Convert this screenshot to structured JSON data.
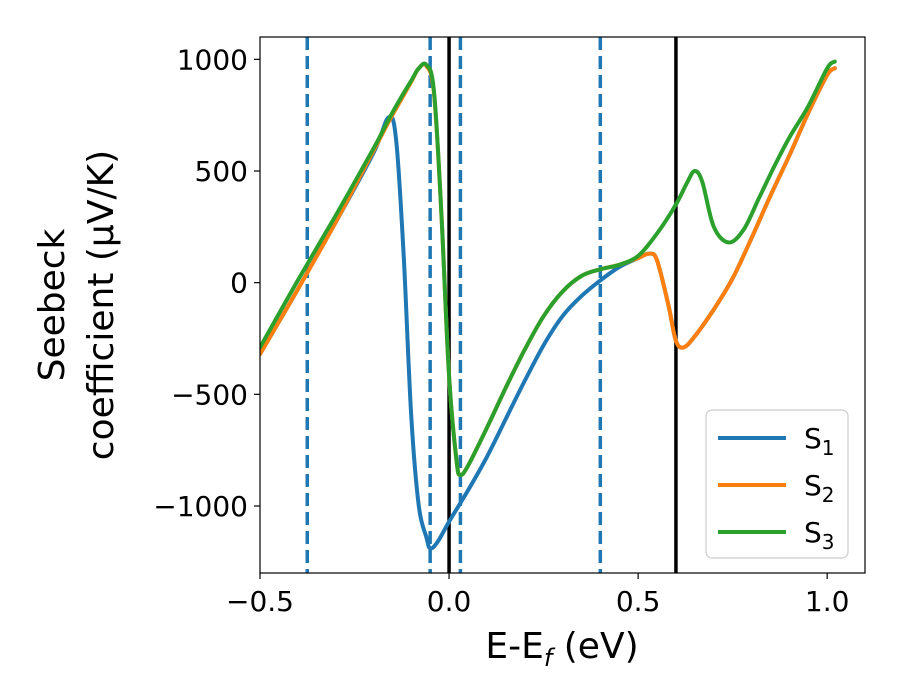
{
  "chart_data": {
    "type": "line",
    "xlabel": {
      "main": "E-E",
      "sub": "f",
      "unit": " (eV)"
    },
    "ylabel": {
      "line1": "Seebeck",
      "line2": "coefficient  (μV/K)"
    },
    "xlim": [
      -0.5,
      1.1
    ],
    "ylim": [
      -1300,
      1100
    ],
    "xticks": [
      -0.5,
      0.0,
      0.5,
      1.0
    ],
    "xtick_labels": [
      "−0.5",
      "0.0",
      "0.5",
      "1.0"
    ],
    "yticks": [
      -1000,
      -500,
      0,
      500,
      1000
    ],
    "ytick_labels": [
      "−1000",
      "−500",
      "0",
      "500",
      "1000"
    ],
    "grid": false,
    "legend_position": "lower-right",
    "vlines_dashed": [
      -0.375,
      -0.05,
      0.03,
      0.4
    ],
    "vlines_solid": [
      0.0,
      0.6
    ],
    "series": [
      {
        "name": "S",
        "sub": "1",
        "color": "#1f77b4",
        "x": [
          -0.5,
          -0.4,
          -0.3,
          -0.2,
          -0.16,
          -0.14,
          -0.12,
          -0.1,
          -0.08,
          -0.06,
          -0.05,
          -0.03,
          0.0,
          0.05,
          0.1,
          0.15,
          0.2,
          0.25,
          0.3,
          0.35,
          0.4,
          0.45,
          0.5,
          0.53,
          0.55,
          0.58,
          0.6,
          0.62,
          0.65,
          0.7,
          0.75,
          0.8,
          0.85,
          0.9,
          0.95,
          1.0,
          1.02
        ],
        "y": [
          -320,
          -30,
          270,
          580,
          740,
          640,
          120,
          -600,
          -1000,
          -1140,
          -1190,
          -1160,
          -1070,
          -930,
          -780,
          -610,
          -440,
          -280,
          -150,
          -60,
          10,
          70,
          110,
          130,
          100,
          -100,
          -260,
          -290,
          -240,
          -120,
          20,
          200,
          390,
          570,
          760,
          930,
          960
        ]
      },
      {
        "name": "S",
        "sub": "2",
        "color": "#ff7f0e",
        "x": [
          -0.5,
          -0.4,
          -0.3,
          -0.2,
          -0.16,
          -0.13,
          -0.1,
          -0.08,
          -0.06,
          -0.04,
          -0.02,
          0.0,
          0.02,
          0.03,
          0.05,
          0.1,
          0.15,
          0.2,
          0.25,
          0.3,
          0.35,
          0.4,
          0.45,
          0.5,
          0.53,
          0.55,
          0.58,
          0.6,
          0.62,
          0.65,
          0.7,
          0.75,
          0.8,
          0.85,
          0.9,
          0.95,
          1.0,
          1.02
        ],
        "y": [
          -320,
          -30,
          270,
          590,
          720,
          810,
          900,
          960,
          970,
          850,
          300,
          -420,
          -800,
          -860,
          -820,
          -650,
          -470,
          -300,
          -150,
          -40,
          30,
          60,
          80,
          110,
          130,
          100,
          -100,
          -260,
          -290,
          -240,
          -120,
          20,
          200,
          390,
          570,
          760,
          930,
          960
        ]
      },
      {
        "name": "S",
        "sub": "3",
        "color": "#2ca02c",
        "x": [
          -0.5,
          -0.4,
          -0.3,
          -0.2,
          -0.16,
          -0.13,
          -0.1,
          -0.08,
          -0.06,
          -0.04,
          -0.02,
          0.0,
          0.02,
          0.03,
          0.05,
          0.1,
          0.15,
          0.2,
          0.25,
          0.3,
          0.35,
          0.4,
          0.45,
          0.5,
          0.55,
          0.6,
          0.63,
          0.65,
          0.67,
          0.7,
          0.74,
          0.78,
          0.82,
          0.86,
          0.9,
          0.95,
          1.0,
          1.02
        ],
        "y": [
          -290,
          10,
          300,
          600,
          730,
          820,
          905,
          960,
          975,
          860,
          300,
          -420,
          -800,
          -860,
          -820,
          -650,
          -470,
          -300,
          -150,
          -40,
          30,
          60,
          80,
          120,
          220,
          350,
          450,
          500,
          450,
          250,
          180,
          240,
          380,
          520,
          650,
          790,
          960,
          990
        ]
      }
    ]
  }
}
